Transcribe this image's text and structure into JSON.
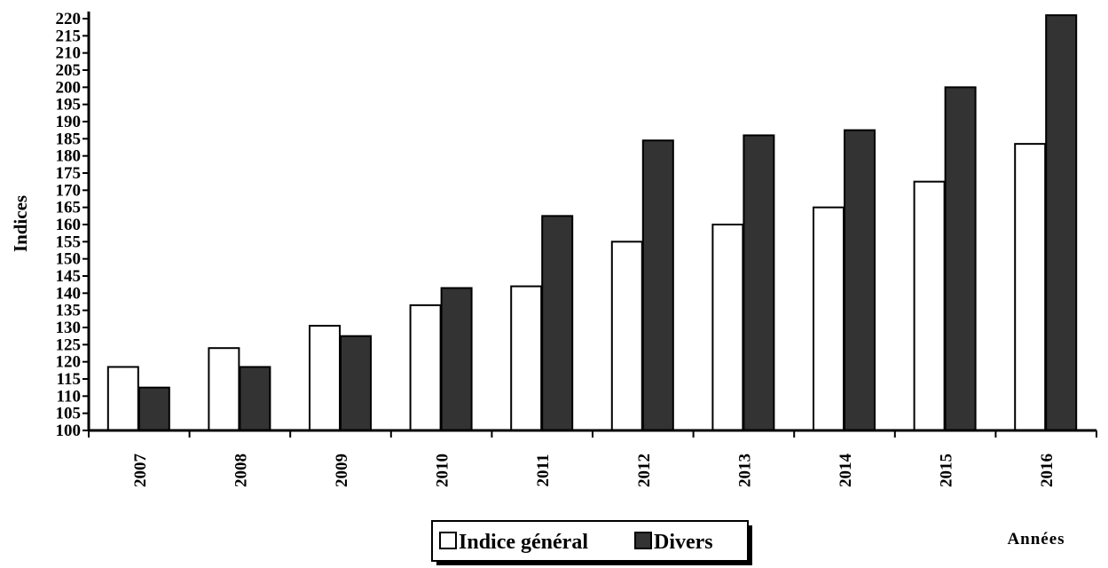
{
  "chart_data": {
    "type": "bar",
    "title": "",
    "xlabel": "Années",
    "ylabel": "Indices",
    "ylim": [
      100,
      220
    ],
    "ytick_step": 5,
    "categories": [
      "2007",
      "2008",
      "2009",
      "2010",
      "2011",
      "2012",
      "2013",
      "2014",
      "2015",
      "2016"
    ],
    "series": [
      {
        "name": "Indice général",
        "color": "#ffffff",
        "values": [
          118.5,
          124,
          130.5,
          136.5,
          142,
          155,
          160,
          165,
          172.5,
          183.5
        ]
      },
      {
        "name": "Divers",
        "color": "#333333",
        "values": [
          112.5,
          118.5,
          127.5,
          141.5,
          162.5,
          184.5,
          186,
          187.5,
          200,
          221
        ]
      }
    ],
    "legend_position": "bottom-center",
    "grid": false
  }
}
